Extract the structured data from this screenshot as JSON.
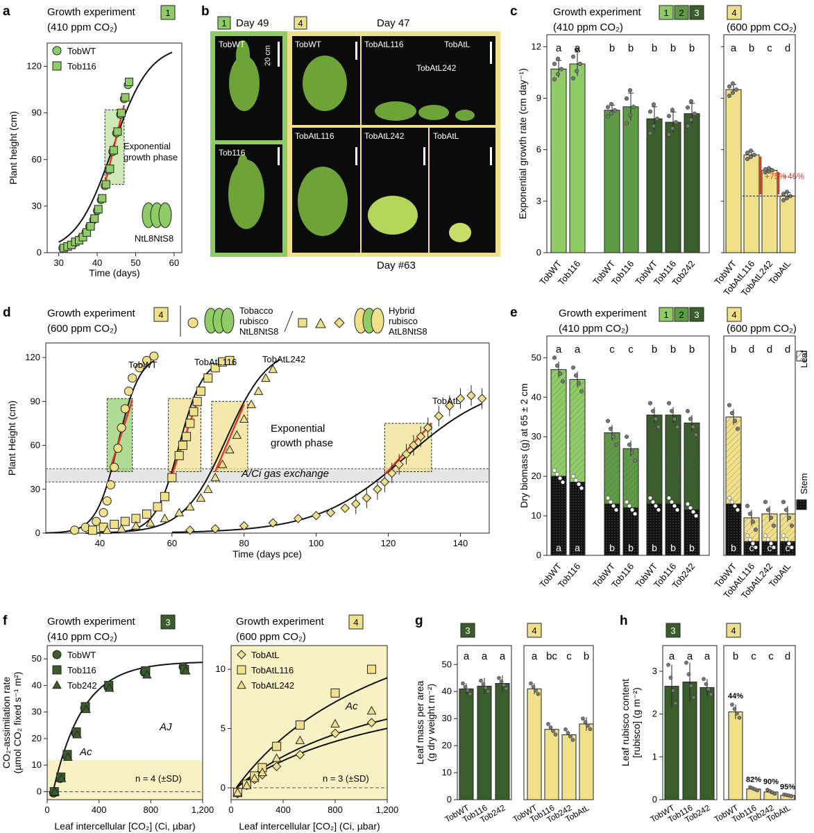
{
  "colors": {
    "light_green": "#8fcc66",
    "mid_green": "#5f9a45",
    "dark_green": "#3a5e2b",
    "yellow": "#f0e08a",
    "red": "#e8341c",
    "photo_bg": "#0c0c0c"
  },
  "panel_a": {
    "label": "a",
    "title_line1": "Growth experiment",
    "title_line2": "(410 ppm CO₂)",
    "badge": "1",
    "legend": [
      "TobWT",
      "Tob116"
    ],
    "annotation_line1": "Exponential",
    "annotation_line2": "growth phase",
    "rubisco_label": "NtL8NtS8",
    "xlabel": "Time (days)",
    "ylabel": "Plant height (cm)",
    "xticks": [
      "30",
      "40",
      "50",
      "60"
    ],
    "yticks": [
      "0",
      "30",
      "60",
      "90",
      "120"
    ]
  },
  "panel_b": {
    "label": "b",
    "badge1": "1",
    "day1": "Day 49",
    "badge4": "4",
    "day4": "Day 47",
    "bottom_day": "Day #63",
    "scale": "20 cm",
    "photos_top": [
      "TobWT",
      "TobWT",
      "TobAtL116",
      "TobAtL",
      "TobAtL242"
    ],
    "photos_bottom": [
      "Tob116",
      "TobAtL116",
      "TobAtL242",
      "TobAtL"
    ]
  },
  "panel_c": {
    "label": "c",
    "title_line1": "Growth experiment",
    "title_line2": "(410 ppm CO₂)",
    "badges": [
      "1",
      "2",
      "3"
    ],
    "badge4": "4",
    "co2_600": "(600 ppm CO₂)",
    "ylabel": "Exponential growth rate (cm day⁻¹)",
    "yticks": [
      "0",
      "3",
      "6",
      "9",
      "12"
    ],
    "letters_410": [
      "a",
      "a",
      "b",
      "b",
      "b",
      "b",
      "b"
    ],
    "letters_600": [
      "a",
      "b",
      "c",
      "d"
    ],
    "pct1": "+75%",
    "pct2": "+46%",
    "xlabels_410": [
      "TobWT",
      "Tob116",
      "TobWT",
      "Tob116",
      "TobWT",
      "Tob116",
      "Tob242"
    ],
    "xlabels_600": [
      "TobWT",
      "TobAtL116",
      "TobAtL242",
      "TobAtL"
    ]
  },
  "panel_d": {
    "label": "d",
    "title_line1": "Growth experiment",
    "title_line2": "(600 ppm CO₂)",
    "badge": "4",
    "legend_tobacco_line1": "Tobacco",
    "legend_tobacco_line2": "rubisco",
    "legend_tobacco_line3": "NtL8NtS8",
    "legend_hybrid_line1": "Hybrid",
    "legend_hybrid_line2": "rubisco",
    "legend_hybrid_line3": "AtL8NtS8",
    "curve_labels": [
      "TobWT",
      "TobAtL116",
      "TobAtL242",
      "TobAtL"
    ],
    "annotation_line1": "Exponential",
    "annotation_line2": "growth phase",
    "gas_exchange": "A/Ci gas exchange",
    "xlabel": "Time (days pce)",
    "ylabel": "Plant Height (cm)",
    "xticks": [
      "40",
      "60",
      "80",
      "100",
      "120",
      "140"
    ],
    "yticks": [
      "0",
      "30",
      "60",
      "90",
      "120"
    ]
  },
  "panel_e": {
    "label": "e",
    "title_line1": "Growth experiment",
    "title_line2": "(410 ppm CO₂)",
    "badges": [
      "1",
      "2",
      "3"
    ],
    "badge4": "4",
    "co2_600": "(600 ppm CO₂)",
    "ylabel": "Dry biomass (g) at 65 ± 2 cm",
    "yticks": [
      "0",
      "10",
      "20",
      "30",
      "40",
      "50"
    ],
    "top_letters": [
      "a",
      "a",
      "c",
      "c",
      "b",
      "b",
      "b",
      "b",
      "d",
      "d",
      "d"
    ],
    "stem_letters": [
      "a",
      "a",
      "b",
      "b",
      "b",
      "b",
      "b",
      "b",
      "c",
      "c",
      "c"
    ],
    "legend_leaf": "Leaf",
    "legend_stem": "Stem",
    "xlabels": [
      "TobWT",
      "Tob116",
      "TobWT",
      "Tob116",
      "TobWT",
      "Tob116",
      "Tob242",
      "TobWT",
      "TobAtL116",
      "TobAtL242",
      "TobAtL"
    ]
  },
  "panel_f": {
    "label": "f",
    "left_title1": "Growth experiment",
    "left_title2": "(410 ppm CO₂)",
    "left_badge": "3",
    "right_title1": "Growth experiment",
    "right_title2": "(600 ppm CO₂)",
    "right_badge": "4",
    "left_legend": [
      "TobWT",
      "Tob116",
      "Tob242"
    ],
    "right_legend": [
      "TobAtL",
      "TobAtL116",
      "TobAtL242"
    ],
    "Aj": "AJ",
    "Ac": "Ac",
    "left_n": "n = 4 (±SD)",
    "right_n": "n = 3 (±SD)",
    "ylabel_line1": "CO₂-assimilation rate",
    "ylabel_line2": "(µmol CO₂ fixed s⁻¹ m²)",
    "xlabel": "Leaf intercellular [CO₂] (Ci, µbar)",
    "left_yticks": [
      "0",
      "10",
      "20",
      "30",
      "40",
      "50"
    ],
    "right_yticks": [
      "0",
      "5",
      "10"
    ],
    "xticks": [
      "0",
      "400",
      "800",
      "1,200"
    ]
  },
  "panel_g": {
    "label": "g",
    "badge3": "3",
    "badge4": "4",
    "ylabel_line1": "Leaf mass per area",
    "ylabel_line2": "(g dry weight m⁻²)",
    "yticks": [
      "0",
      "10",
      "20",
      "30",
      "40",
      "50"
    ],
    "letters": [
      "a",
      "a",
      "a",
      "a",
      "bc",
      "c",
      "b"
    ],
    "xlabels": [
      "TobWT",
      "Tob116",
      "Tob242",
      "TobWT",
      "Tob116",
      "Tob242",
      "TobAtL"
    ]
  },
  "panel_h": {
    "label": "h",
    "badge3": "3",
    "badge4": "4",
    "ylabel_line1": "Leaf rubisco content",
    "ylabel_line2": "[rubisco] (g m⁻²)",
    "yticks": [
      "0",
      "1",
      "2",
      "3"
    ],
    "letters": [
      "a",
      "a",
      "a",
      "b",
      "c",
      "c",
      "d"
    ],
    "pcts": [
      "44%",
      "82%",
      "90%",
      "95%"
    ],
    "xlabels": [
      "TobWT",
      "Tob116",
      "Tob242",
      "TobWT",
      "Tob116",
      "Tob242",
      "TobAtL"
    ]
  },
  "chart_data": [
    {
      "id": "a",
      "type": "line",
      "title": "Growth experiment 1 (410 ppm CO₂)",
      "xlabel": "Time (days)",
      "ylabel": "Plant height (cm)",
      "xlim": [
        27,
        62
      ],
      "ylim": [
        0,
        135
      ],
      "series": [
        {
          "name": "TobWT",
          "x": [
            31,
            32,
            33,
            34,
            35,
            36,
            37,
            38,
            39,
            40,
            41,
            42,
            43,
            44,
            45,
            46,
            47,
            48
          ],
          "y": [
            3,
            4,
            5,
            6,
            8,
            10,
            13,
            17,
            21,
            27,
            34,
            43,
            53,
            65,
            77,
            89,
            99,
            108
          ]
        },
        {
          "name": "Tob116",
          "x": [
            31.3,
            32.3,
            33.3,
            34.3,
            35.3,
            36.3,
            37.3,
            38.3,
            39.3,
            40.3,
            41.3,
            42.3,
            43.3,
            44.3,
            45.3,
            46.3,
            47.3,
            48.3
          ],
          "y": [
            3,
            4,
            5,
            7,
            8,
            10,
            13,
            17,
            22,
            28,
            35,
            44,
            54,
            66,
            78,
            90,
            100,
            110
          ]
        }
      ]
    },
    {
      "id": "c",
      "type": "bar",
      "ylabel": "Exponential growth rate (cm day⁻¹)",
      "ylim": [
        0,
        12.7
      ],
      "categories": [
        "TobWT",
        "Tob116",
        "TobWT",
        "Tob116",
        "TobWT",
        "Tob116",
        "Tob242",
        "TobWT",
        "TobAtL116",
        "TobAtL242",
        "TobAtL"
      ],
      "values": [
        10.7,
        11.0,
        8.3,
        8.5,
        7.8,
        7.6,
        8.1,
        9.5,
        5.7,
        4.8,
        3.3
      ],
      "errors": [
        0.5,
        0.7,
        0.3,
        0.8,
        0.7,
        0.6,
        0.6,
        0.3,
        0.2,
        0.1,
        0.2
      ]
    },
    {
      "id": "d",
      "type": "line",
      "xlabel": "Time (days pce)",
      "ylabel": "Plant Height (cm)",
      "xlim": [
        25,
        148
      ],
      "ylim": [
        0,
        130
      ],
      "series": [
        {
          "name": "TobWT",
          "x": [
            33,
            36,
            39,
            41,
            42,
            43,
            44,
            45,
            46,
            47,
            48,
            49,
            51,
            53,
            55
          ],
          "y": [
            2,
            4,
            8,
            14,
            22,
            33,
            45,
            58,
            72,
            85,
            97,
            106,
            113,
            118,
            121
          ]
        },
        {
          "name": "TobAtL116",
          "x": [
            38,
            41,
            44,
            47,
            50,
            53,
            56,
            58,
            60,
            62,
            63,
            64,
            65,
            66,
            67,
            68,
            70,
            72,
            74,
            76
          ],
          "y": [
            2,
            4,
            6,
            8,
            10,
            13,
            18,
            25,
            38,
            53,
            60,
            66,
            75,
            83,
            90,
            97,
            106,
            113,
            117,
            118
          ]
        },
        {
          "name": "TobAtL242",
          "x": [
            42,
            46,
            50,
            54,
            58,
            62,
            65,
            68,
            70,
            72,
            74,
            76,
            78,
            80,
            82,
            84,
            86,
            88
          ],
          "y": [
            2,
            3,
            5,
            7,
            10,
            14,
            18,
            24,
            30,
            38,
            47,
            57,
            67,
            78,
            88,
            97,
            106,
            112
          ]
        },
        {
          "name": "TobAtL",
          "x": [
            65,
            72,
            80,
            88,
            95,
            100,
            104,
            108,
            111,
            114,
            117,
            119,
            121,
            123,
            125,
            127,
            129,
            131,
            134,
            137,
            140,
            143,
            146
          ],
          "y": [
            2,
            3,
            5,
            7,
            10,
            12,
            14,
            17,
            20,
            24,
            30,
            35,
            41,
            47,
            54,
            60,
            66,
            72,
            80,
            87,
            92,
            94,
            92
          ]
        }
      ]
    },
    {
      "id": "e",
      "type": "bar",
      "ylabel": "Dry biomass (g) at 65 ± 2 cm",
      "ylim": [
        0,
        55.5
      ],
      "categories": [
        "TobWT",
        "Tob116",
        "TobWT",
        "Tob116",
        "TobWT",
        "Tob116",
        "Tob242",
        "TobWT",
        "TobAtL116",
        "TobAtL242",
        "TobAtL"
      ],
      "series": [
        {
          "name": "Stem",
          "values": [
            20,
            18.5,
            13,
            12,
            13,
            13,
            11.5,
            13,
            3.5,
            3.5,
            3.5
          ]
        },
        {
          "name": "Leaf",
          "values": [
            27,
            26,
            18,
            15,
            22.5,
            22.5,
            22,
            22,
            6,
            7,
            7
          ]
        }
      ],
      "totals": [
        47,
        44.5,
        31,
        27,
        35.5,
        35.5,
        33.5,
        35,
        9.5,
        10.5,
        10.5
      ]
    },
    {
      "id": "f-left",
      "type": "scatter",
      "xlabel": "Leaf intercellular [CO₂] (Ci, µbar)",
      "ylabel": "CO₂-assimilation rate",
      "xlim": [
        0,
        1200
      ],
      "ylim": [
        -3,
        55
      ],
      "series": [
        {
          "name": "TobWT",
          "x": [
            50,
            100,
            150,
            220,
            290,
            470,
            750,
            1050
          ],
          "y": [
            -0.5,
            5,
            13.5,
            22,
            31.5,
            39.5,
            45,
            47
          ]
        },
        {
          "name": "Tob116",
          "x": [
            55,
            105,
            155,
            225,
            295,
            475,
            760,
            1060
          ],
          "y": [
            0,
            5.5,
            14,
            22.5,
            32,
            40,
            45.5,
            46
          ]
        },
        {
          "name": "Tob242",
          "x": [
            60,
            110,
            160,
            230,
            300,
            480,
            770,
            1070
          ],
          "y": [
            0,
            5,
            13,
            21.5,
            31,
            39,
            44,
            45.5
          ]
        }
      ]
    },
    {
      "id": "f-right",
      "type": "scatter",
      "xlabel": "Leaf intercellular [CO₂] (Ci, µbar)",
      "ylabel": "CO₂-assimilation rate",
      "xlim": [
        0,
        1200
      ],
      "ylim": [
        -1,
        12
      ],
      "series": [
        {
          "name": "TobAtL",
          "x": [
            50,
            120,
            180,
            240,
            350,
            530,
            800,
            1080
          ],
          "y": [
            -0.5,
            0.2,
            0.7,
            1.1,
            1.8,
            2.8,
            4.6,
            5.5
          ]
        },
        {
          "name": "TobAtL116",
          "x": [
            50,
            120,
            180,
            240,
            350,
            530,
            800,
            1080
          ],
          "y": [
            -0.4,
            0.3,
            1.0,
            1.7,
            3.5,
            5.3,
            8.0,
            10.0
          ]
        },
        {
          "name": "TobAtL242",
          "x": [
            50,
            120,
            180,
            240,
            350,
            530,
            800,
            1080
          ],
          "y": [
            -0.4,
            0.2,
            0.8,
            1.3,
            2.5,
            4.0,
            5.4,
            6.5
          ]
        }
      ]
    },
    {
      "id": "g",
      "type": "bar",
      "ylabel": "Leaf mass per area (g dry weight m⁻²)",
      "ylim": [
        0,
        57
      ],
      "categories": [
        "TobWT",
        "Tob116",
        "Tob242",
        "TobWT",
        "Tob116",
        "Tob242",
        "TobAtL"
      ],
      "values": [
        41,
        42,
        43,
        41,
        26,
        24,
        28
      ],
      "errors": [
        2,
        3,
        3,
        2,
        1,
        1,
        2.5
      ]
    },
    {
      "id": "h",
      "type": "bar",
      "ylabel": "Leaf rubisco content [rubisco] (g m⁻²)",
      "ylim": [
        0,
        3.6
      ],
      "categories": [
        "TobWT",
        "Tob116",
        "Tob242",
        "TobWT",
        "Tob116",
        "Tob242",
        "TobAtL"
      ],
      "values": [
        2.65,
        2.75,
        2.62,
        2.05,
        0.25,
        0.18,
        0.1
      ],
      "errors": [
        0.5,
        0.45,
        0.2,
        0.17,
        0.04,
        0.05,
        0.02
      ]
    }
  ]
}
